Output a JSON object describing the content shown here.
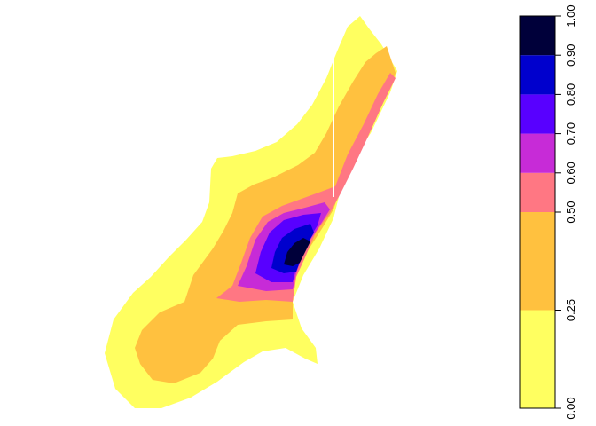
{
  "chart_data": {
    "type": "heatmap",
    "title": "",
    "xlabel": "",
    "ylabel": "",
    "colorbar": {
      "orientation": "vertical",
      "placement": "right",
      "range": [
        0.0,
        1.0
      ],
      "breaks": [
        0.0,
        0.25,
        0.5,
        0.6,
        0.7,
        0.8,
        0.9,
        1.0
      ],
      "tick_labels": [
        "0.00",
        "0.25",
        "0.50",
        "0.60",
        "0.70",
        "0.80",
        "0.90",
        "1.00"
      ],
      "bins": [
        {
          "from": 0.0,
          "to": 0.25,
          "color": "#FFFF60"
        },
        {
          "from": 0.25,
          "to": 0.5,
          "color": "#FFC13F"
        },
        {
          "from": 0.5,
          "to": 0.6,
          "color": "#FF7783"
        },
        {
          "from": 0.6,
          "to": 0.7,
          "color": "#C72BD7"
        },
        {
          "from": 0.7,
          "to": 0.8,
          "color": "#5800FF"
        },
        {
          "from": 0.8,
          "to": 0.9,
          "color": "#0000CD"
        },
        {
          "from": 0.9,
          "to": 1.0,
          "color": "#00003A"
        }
      ]
    },
    "regions": [
      {
        "level_bin": 0,
        "color": "#FFFF60"
      },
      {
        "level_bin": 1,
        "color": "#FFC13F"
      },
      {
        "level_bin": 2,
        "color": "#FF7783"
      },
      {
        "level_bin": 3,
        "color": "#C72BD7"
      },
      {
        "level_bin": 4,
        "color": "#5800FF"
      },
      {
        "level_bin": 5,
        "color": "#0000CD"
      },
      {
        "level_bin": 6,
        "color": "#00003A"
      }
    ]
  }
}
